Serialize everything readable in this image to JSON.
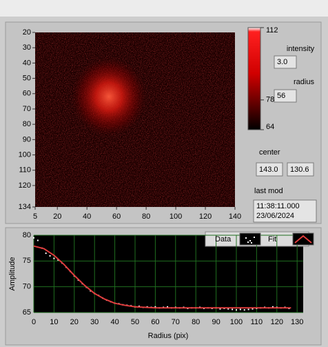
{
  "chart_data": [
    {
      "type": "heatmap",
      "xlim": [
        5,
        140
      ],
      "xticks": [
        5,
        20,
        40,
        60,
        80,
        100,
        120,
        140
      ],
      "ylim": [
        20,
        134
      ],
      "yticks": [
        20,
        30,
        40,
        50,
        60,
        70,
        80,
        90,
        100,
        110,
        120,
        134
      ],
      "colorbar": {
        "lim": [
          64,
          112
        ],
        "ticks": [
          64,
          78,
          112
        ]
      }
    },
    {
      "type": "line",
      "x_label": "Radius (pix)",
      "y_label": "Amplitude",
      "xlim": [
        0,
        133
      ],
      "xticks": [
        0,
        10,
        20,
        30,
        40,
        50,
        60,
        70,
        80,
        90,
        100,
        110,
        120,
        130
      ],
      "ylim": [
        65,
        80
      ],
      "yticks": [
        65,
        70,
        75,
        80
      ],
      "grid": true,
      "grid_color": "#1f6e1f",
      "background": "#000000",
      "series": [
        {
          "name": "Data",
          "mode": "markers",
          "color": "#ffffff",
          "x": [
            0,
            2,
            4,
            6,
            8,
            10,
            12,
            14,
            16,
            18,
            20,
            22,
            24,
            26,
            28,
            30,
            32,
            34,
            36,
            38,
            40,
            42,
            44,
            46,
            48,
            50,
            52,
            54,
            56,
            58,
            60,
            62,
            64,
            66,
            68,
            70,
            72,
            74,
            76,
            78,
            80,
            82,
            84,
            86,
            88,
            90,
            92,
            94,
            96,
            98,
            100,
            102,
            104,
            106,
            108,
            110,
            112,
            114,
            116,
            118,
            120,
            122,
            124,
            126
          ],
          "values": [
            79.5,
            79,
            77.5,
            76.5,
            76,
            75.5,
            75.2,
            74.6,
            73.8,
            73,
            72.1,
            71.3,
            70.6,
            69.9,
            69.2,
            68.7,
            68.3,
            67.8,
            67.4,
            67.1,
            66.8,
            66.7,
            66.5,
            66.4,
            66.3,
            66.1,
            66.2,
            66.0,
            66.1,
            66.0,
            66.1,
            65.9,
            66.0,
            66.1,
            65.9,
            66.0,
            65.9,
            66.0,
            65.8,
            65.9,
            65.9,
            66.0,
            65.8,
            65.9,
            65.8,
            65.9,
            65.7,
            65.8,
            65.7,
            65.6,
            65.5,
            65.6,
            65.5,
            65.6,
            65.7,
            65.8,
            65.9,
            66.0,
            65.9,
            66.1,
            66.0,
            65.9,
            66.0,
            65.8
          ]
        },
        {
          "name": "Fit",
          "mode": "line",
          "color": "#e03c3c",
          "x": [
            0,
            5,
            10,
            15,
            20,
            25,
            30,
            35,
            40,
            45,
            50,
            55,
            60,
            70,
            80,
            90,
            100,
            110,
            120,
            127
          ],
          "values": [
            77.9,
            77.4,
            76.1,
            74.3,
            72.2,
            70.3,
            68.7,
            67.6,
            66.8,
            66.4,
            66.1,
            66.0,
            65.9,
            65.9,
            65.9,
            65.9,
            65.9,
            65.9,
            65.9,
            65.9
          ]
        }
      ]
    }
  ],
  "controls": {
    "intensity": {
      "label": "intensity",
      "value": "3.0"
    },
    "radius": {
      "label": "radius",
      "value": "56"
    },
    "center": {
      "label": "center",
      "values": [
        "143.0",
        "130.6"
      ]
    },
    "last_mod": {
      "label": "last mod",
      "time": "11:38:11.000",
      "date": "23/06/2024"
    }
  }
}
